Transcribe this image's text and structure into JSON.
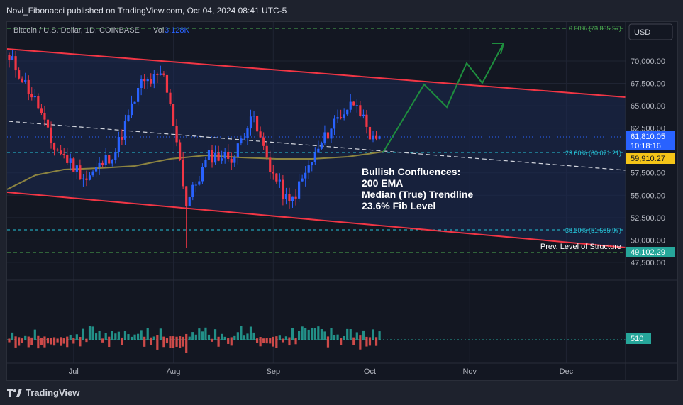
{
  "header": {
    "published": "Novi_Fibonacci published on TradingView.com, Oct 04, 2024 08:41 UTC-5",
    "symbol": "Bitcoin / U.S. Dollar, 1D, COINBASE",
    "vol_label": "Vol",
    "vol_value": "3.128K",
    "currency": "USD"
  },
  "footer": {
    "brand": "TradingView"
  },
  "annotations": {
    "fib_0": "0.00% (73,835.57)",
    "fib_236": "23.60% (60,071.21)",
    "fib_382": "38.20% (51,555.97)",
    "prev_structure": "Prev. Level of Structure",
    "confluence_title": "Bullish Confluences:",
    "confluence_1": "200 EMA",
    "confluence_2": "Median (True) Trendline",
    "confluence_3": "23.6% Fib Level"
  },
  "price_tags": {
    "last_price": "61,810.05",
    "countdown": "10:18:16",
    "ema_value": "59,910.27",
    "structure": "49,102.29",
    "volume": "510"
  },
  "colors": {
    "bull": "#2962ff",
    "bear": "#f23645",
    "channel": "#f23645",
    "ema": "#8d8440",
    "projection": "#1e8e3e",
    "fib": "#26c6da",
    "structure": "#4caf50",
    "volume_bull": "#26a69a",
    "volume_bear": "#ef5350"
  },
  "chart_data": {
    "type": "candlestick",
    "price_axis": [
      "70,000.00",
      "67,500.00",
      "65,000.00",
      "62,500.00",
      "57,500.00",
      "55,000.00",
      "52,500.00",
      "50,000.00",
      "47,500.00"
    ],
    "time_axis": [
      "Jul",
      "Aug",
      "Sep",
      "Oct",
      "Nov",
      "Dec"
    ],
    "ylim": [
      46500,
      75500
    ],
    "close_series": [
      {
        "date": "2024-06-12",
        "close": 69900
      },
      {
        "date": "2024-06-20",
        "close": 65000
      },
      {
        "date": "2024-06-24",
        "close": 60800
      },
      {
        "date": "2024-07-05",
        "close": 56800
      },
      {
        "date": "2024-07-14",
        "close": 60000
      },
      {
        "date": "2024-07-22",
        "close": 67500
      },
      {
        "date": "2024-07-29",
        "close": 68200
      },
      {
        "date": "2024-08-02",
        "close": 61400
      },
      {
        "date": "2024-08-05",
        "close": 54000
      },
      {
        "date": "2024-08-12",
        "close": 59400
      },
      {
        "date": "2024-08-20",
        "close": 59300
      },
      {
        "date": "2024-08-25",
        "close": 64100
      },
      {
        "date": "2024-09-01",
        "close": 57300
      },
      {
        "date": "2024-09-06",
        "close": 53900
      },
      {
        "date": "2024-09-12",
        "close": 58100
      },
      {
        "date": "2024-09-20",
        "close": 63300
      },
      {
        "date": "2024-09-27",
        "close": 65800
      },
      {
        "date": "2024-10-01",
        "close": 60700
      },
      {
        "date": "2024-10-04",
        "close": 61810
      }
    ]
  }
}
